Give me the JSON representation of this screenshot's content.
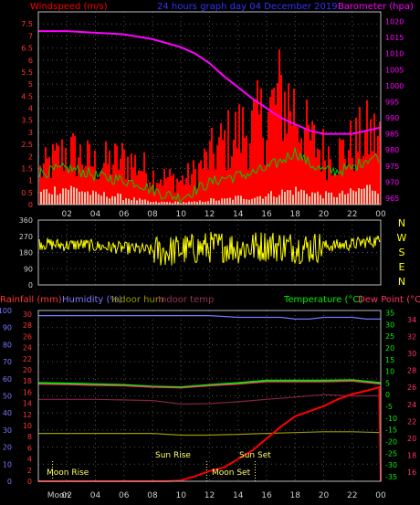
{
  "top_panel": {
    "left_title": "Windspeed (m/s)",
    "center_title": "24 hours graph day  04 December 2019",
    "right_title": "Barometer (hpa)",
    "left_ticks": [
      "0",
      "0.5",
      "1",
      "1.5",
      "2",
      "2.5",
      "3",
      "3.5",
      "4",
      "4.5",
      "5",
      "5.5",
      "6",
      "6.5",
      "7",
      "7.5"
    ],
    "right_ticks": [
      "965",
      "970",
      "975",
      "980",
      "985",
      "990",
      "995",
      "1000",
      "1005",
      "1010",
      "1015",
      "1020"
    ],
    "x_ticks": [
      "02",
      "04",
      "06",
      "08",
      "10",
      "12",
      "14",
      "16",
      "18",
      "20",
      "22",
      "00"
    ]
  },
  "mid_panel": {
    "left_ticks": [
      "0",
      "90",
      "180",
      "270",
      "360"
    ],
    "compass": [
      "N",
      "W",
      "S",
      "E",
      "N"
    ]
  },
  "bottom_panel": {
    "legend": {
      "rainfall": "Rainfall (mm)",
      "humidity": "Humidity (%)",
      "indoor_hum": "Indoor hum",
      "indoor_temp": "Indoor temp",
      "temperature": "Temperature (°C)",
      "dew_point": "Dew Point (°C)"
    },
    "humidity_ticks": [
      "0",
      "10",
      "20",
      "30",
      "40",
      "50",
      "60",
      "70",
      "80",
      "90",
      "100"
    ],
    "rain_ticks": [
      "0",
      "2",
      "4",
      "6",
      "8",
      "10",
      "12",
      "14",
      "16",
      "18",
      "20",
      "22",
      "24",
      "26",
      "28",
      "30"
    ],
    "temp_ticks": [
      "-35",
      "-30",
      "-25",
      "-20",
      "-15",
      "-10",
      "-5",
      "0",
      "5",
      "10",
      "15",
      "20",
      "25",
      "30",
      "35"
    ],
    "indoor_ticks": [
      "16",
      "18",
      "20",
      "22",
      "24",
      "26",
      "28",
      "30",
      "32",
      "34"
    ],
    "x_ticks": [
      "Moon",
      "02",
      "04",
      "06",
      "08",
      "10",
      "12",
      "14",
      "16",
      "18",
      "20",
      "22",
      "00"
    ],
    "annotations": {
      "moon_rise": "Moon Rise",
      "sun_rise": "Sun Rise",
      "moon_set": "Moon Set",
      "sun_set": "Sun Set"
    }
  },
  "colors": {
    "windspeed": "#ff0000",
    "gust": "#00cc00",
    "avg_wind": "#e0ffe0",
    "barometer": "#ff00ff",
    "direction": "#ffff00",
    "rainfall": "#ff0000",
    "humidity": "#7777ff",
    "temperature": "#00ee00",
    "dew_point": "#ff3366",
    "indoor_hum": "#999900",
    "indoor_temp": "#882244",
    "grid": "#555555",
    "frame": "#bbbbbb"
  },
  "chart_data": [
    {
      "type": "area",
      "title": "24 hours graph day  04 December 2019",
      "ylabel": "Windspeed (m/s)",
      "y2label": "Barometer (hpa)",
      "x_hours": [
        0,
        2,
        4,
        6,
        8,
        10,
        12,
        14,
        16,
        18,
        20,
        22,
        24
      ],
      "ylim": [
        0,
        8
      ],
      "y2lim": [
        963,
        1023
      ],
      "series": [
        {
          "name": "Barometer (hpa)",
          "axis": "y2",
          "x": [
            0,
            2,
            4,
            6,
            8,
            10,
            11,
            12,
            13,
            14,
            15,
            16,
            17,
            18,
            19,
            20,
            21,
            22,
            23,
            24
          ],
          "values": [
            1017,
            1017,
            1016.5,
            1016,
            1014.5,
            1012,
            1010,
            1007,
            1003,
            999.5,
            996,
            993,
            990,
            988,
            986,
            985,
            985,
            985,
            986,
            987
          ]
        },
        {
          "name": "",
          "axis": "y",
          "style": "bars",
          "x": [
            0,
            1,
            2,
            3,
            4,
            5,
            6,
            7,
            8,
            9,
            10,
            11,
            12,
            13,
            14,
            15,
            16,
            17,
            18,
            19,
            20,
            21,
            22,
            23,
            24
          ],
          "values": [
            1.2,
            1.6,
            2.0,
            1.8,
            1.5,
            1.6,
            1.7,
            1.5,
            1.1,
            1.0,
            0.9,
            1.2,
            1.8,
            2.3,
            2.7,
            2.9,
            3.3,
            4.1,
            3.6,
            2.4,
            2.0,
            1.9,
            2.2,
            2.6,
            2.5
          ]
        },
        {
          "name": "",
          "axis": "y",
          "style": "line",
          "x": [
            0,
            1,
            2,
            3,
            4,
            5,
            6,
            7,
            8,
            9,
            10,
            11,
            12,
            13,
            14,
            15,
            16,
            17,
            18,
            19,
            20,
            21,
            22,
            23,
            24
          ],
          "values": [
            1.3,
            1.4,
            1.5,
            1.4,
            1.2,
            1.1,
            1.0,
            0.9,
            0.6,
            0.4,
            0.3,
            0.6,
            0.9,
            1.1,
            1.2,
            1.3,
            1.5,
            1.8,
            2.2,
            1.7,
            1.4,
            1.4,
            1.5,
            1.9,
            2.0
          ]
        },
        {
          "name": "",
          "axis": "y",
          "style": "bars",
          "x": [
            0,
            1,
            2,
            3,
            4,
            5,
            6,
            7,
            8,
            9,
            10,
            11,
            12,
            13,
            14,
            15,
            16,
            17,
            18,
            19,
            20,
            21,
            22,
            23,
            24
          ],
          "values": [
            0.5,
            0.6,
            0.7,
            0.6,
            0.4,
            0.4,
            0.3,
            0.2,
            0.1,
            0.1,
            0.1,
            0.1,
            0.2,
            0.2,
            0.3,
            0.3,
            0.4,
            0.5,
            0.6,
            0.5,
            0.4,
            0.4,
            0.5,
            0.7,
            0.7
          ]
        }
      ]
    },
    {
      "type": "line",
      "ylabel": "",
      "ylim": [
        0,
        360
      ],
      "series": [
        {
          "name": "",
          "x": [
            0,
            1,
            2,
            3,
            4,
            5,
            6,
            7,
            8,
            9,
            10,
            11,
            12,
            13,
            14,
            15,
            16,
            17,
            18,
            19,
            20,
            21,
            22,
            23,
            24
          ],
          "values": [
            230,
            225,
            220,
            225,
            215,
            210,
            205,
            200,
            190,
            185,
            195,
            200,
            210,
            215,
            205,
            210,
            220,
            215,
            210,
            205,
            215,
            220,
            225,
            240,
            245
          ]
        }
      ]
    },
    {
      "type": "line",
      "ylabel": "Humidity (%)",
      "y2label": "Temperature (°C)",
      "ylim": [
        0,
        100
      ],
      "y2lim": [
        -37,
        36
      ],
      "series": [
        {
          "name": "Humidity (%)",
          "axis": "y",
          "x": [
            0,
            4,
            8,
            10,
            12,
            14,
            16,
            17,
            18,
            19,
            20,
            22,
            23,
            24
          ],
          "values": [
            97,
            97,
            97,
            97,
            97,
            96,
            96,
            96,
            95,
            95,
            96,
            96,
            95,
            95
          ]
        },
        {
          "name": "Temperature (°C)",
          "axis": "y2",
          "x": [
            0,
            2,
            4,
            6,
            8,
            10,
            12,
            14,
            16,
            18,
            20,
            22,
            24
          ],
          "values": [
            5,
            4.8,
            4.5,
            4.2,
            3.5,
            3.2,
            4.2,
            5,
            6,
            6,
            6,
            6.2,
            5
          ]
        },
        {
          "name": "Dew Point (°C)",
          "axis": "y2",
          "x": [
            0,
            2,
            4,
            6,
            8,
            10,
            12,
            14,
            16,
            18,
            20,
            22,
            24
          ],
          "values": [
            4.5,
            4.3,
            4,
            3.8,
            3.2,
            2.9,
            3.8,
            4.5,
            5.5,
            5.5,
            5.5,
            5.8,
            4.5
          ]
        },
        {
          "name": "Indoor temp",
          "axis": "y2",
          "x": [
            0,
            4,
            8,
            10,
            12,
            14,
            16,
            18,
            20,
            22,
            24
          ],
          "values": [
            -2,
            -2,
            -2.5,
            -4,
            -3.8,
            -3,
            -2,
            -1,
            0,
            -0.5,
            -0.5
          ]
        },
        {
          "name": "Indoor hum",
          "axis": "y",
          "x": [
            0,
            4,
            8,
            10,
            12,
            14,
            16,
            18,
            20,
            22,
            24
          ],
          "values": [
            28,
            28,
            28,
            27,
            27,
            27.5,
            28,
            28.5,
            29,
            29,
            28.5
          ]
        },
        {
          "name": "Rainfall (mm)",
          "axis": "y",
          "x": [
            0,
            8,
            9,
            10,
            11,
            12,
            13,
            14,
            15,
            16,
            17,
            18,
            19,
            20,
            21,
            22,
            23,
            23.9,
            24
          ],
          "values": [
            0,
            0,
            0,
            0.5,
            3,
            6,
            8,
            13,
            18,
            25,
            32,
            38,
            41,
            44,
            48,
            51,
            53,
            55,
            0
          ]
        }
      ]
    }
  ]
}
